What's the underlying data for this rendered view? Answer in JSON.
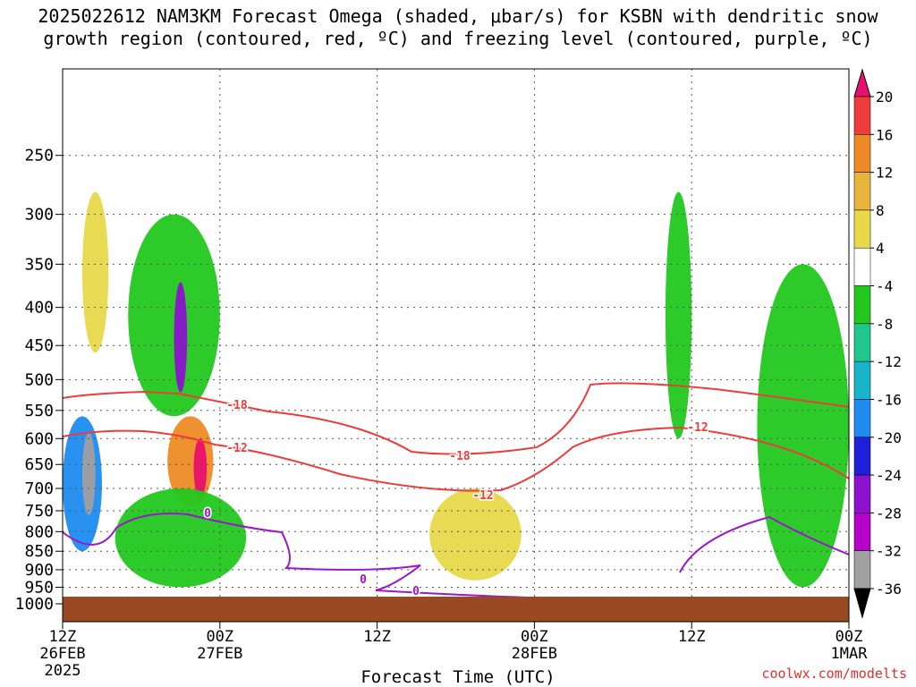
{
  "title_line1": "2025022612 NAM3KM Forecast Omega (shaded, μbar/s) for KSBN with dendritic snow",
  "title_line2": "growth region (contoured, red, ºC) and freezing level (contoured, purple, ºC)",
  "credit": "coolwx.com/modelts",
  "chart_data": {
    "type": "heatmap",
    "title": "2025022612 NAM3KM Forecast Omega (shaded, μbar/s) for KSBN with dendritic snow growth region (contoured, red, ºC) and freezing level (contoured, purple, ºC)",
    "xlabel": "Forecast Time (UTC)",
    "ylabel": "",
    "x_ticks": [
      {
        "l1": "12Z",
        "l2": "26FEB",
        "l3": "2025"
      },
      {
        "l1": "00Z",
        "l2": "27FEB",
        "l3": ""
      },
      {
        "l1": "12Z",
        "l2": "",
        "l3": ""
      },
      {
        "l1": "00Z",
        "l2": "28FEB",
        "l3": ""
      },
      {
        "l1": "12Z",
        "l2": "",
        "l3": ""
      },
      {
        "l1": "00Z",
        "l2": "1MAR",
        "l3": ""
      }
    ],
    "x_range_hours": [
      0,
      60
    ],
    "y_ticks": [
      250,
      300,
      350,
      400,
      450,
      500,
      550,
      600,
      650,
      700,
      750,
      800,
      850,
      900,
      950,
      1000
    ],
    "y_range_hPa": [
      1000,
      200
    ],
    "y_scale": "pressure (hPa)",
    "grid": true,
    "colorbar": {
      "labels": [
        "20",
        "16",
        "12",
        "8",
        "4",
        "-4",
        "-8",
        "-12",
        "-16",
        "-20",
        "-24",
        "-28",
        "-32",
        "-36"
      ],
      "colors": [
        "#e8106e",
        "#ee3b3b",
        "#ee8a26",
        "#e8b43c",
        "#e8d84a",
        "#ffffff",
        "#22c81e",
        "#1ec88c",
        "#18b4c8",
        "#1e8cf0",
        "#2020dc",
        "#8c12d0",
        "#b400c8",
        "#a0a0a0",
        "#000000"
      ]
    },
    "contours": [
      {
        "label": "-18",
        "color": "#ee3b3b"
      },
      {
        "label": "-12",
        "color": "#ee3b3b"
      },
      {
        "label": "0",
        "color": "#9b18c8"
      }
    ],
    "surface_color": "#9a4a22",
    "shaded_regions": [
      {
        "hours": [
          0,
          3
        ],
        "p": [
          560,
          850
        ],
        "value": -20
      },
      {
        "hours": [
          1.5,
          2.5
        ],
        "p": [
          590,
          760
        ],
        "value": -36
      },
      {
        "hours": [
          1.5,
          3.5
        ],
        "p": [
          280,
          460
        ],
        "value": 4
      },
      {
        "hours": [
          5,
          12
        ],
        "p": [
          300,
          560
        ],
        "value": -8
      },
      {
        "hours": [
          8.5,
          9.5
        ],
        "p": [
          370,
          520
        ],
        "value": -28
      },
      {
        "hours": [
          8,
          11.5
        ],
        "p": [
          560,
          740
        ],
        "value": 12
      },
      {
        "hours": [
          10,
          11
        ],
        "p": [
          600,
          720
        ],
        "value": 20
      },
      {
        "hours": [
          4,
          14
        ],
        "p": [
          700,
          950
        ],
        "value": -8
      },
      {
        "hours": [
          28,
          35
        ],
        "p": [
          700,
          930
        ],
        "value": 4
      },
      {
        "hours": [
          46,
          48
        ],
        "p": [
          280,
          600
        ],
        "value": -8
      },
      {
        "hours": [
          53,
          60
        ],
        "p": [
          350,
          950
        ],
        "value": -8
      }
    ]
  }
}
